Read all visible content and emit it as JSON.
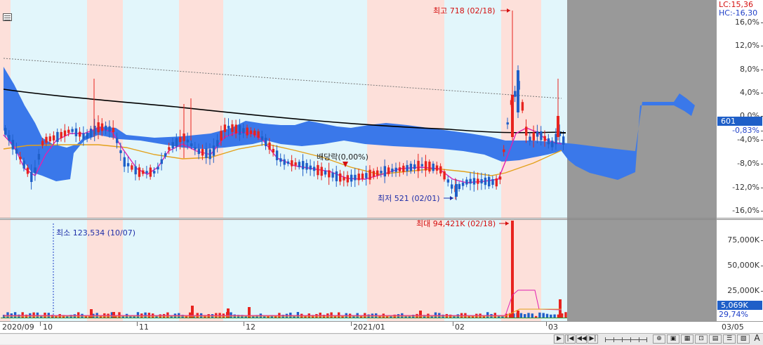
{
  "top_axis": {
    "lc_label": "LC:15,36",
    "hc_label": "HC:-16,30",
    "ticks": [
      "16,0%",
      "12,0%",
      "8,0%",
      "4,0%",
      "0,0%",
      "-4,0%",
      "-8,0%",
      "-12,0%",
      "-16,0%"
    ],
    "current_price": "601",
    "current_change": "-0,83%"
  },
  "volume_axis": {
    "ticks": [
      "75,000K",
      "50,000K",
      "25,000K"
    ],
    "current_volume": "5,069K",
    "current_ratio": "29,74%"
  },
  "x_axis": {
    "labels": [
      "2020/09",
      "10",
      "11",
      "12",
      "2021/01",
      "02",
      "03"
    ],
    "right_label": "03/05"
  },
  "annotations": {
    "high": "최고 718 (02/18)",
    "low": "최저 521 (02/01)",
    "dividend": "배당락(0,00%)",
    "vol_max": "최대 94,421K (02/18)",
    "vol_min": "최소 123,534 (10/07)"
  },
  "colors": {
    "up": "#e8231e",
    "down": "#1f5fc8",
    "cloud": "#3a78ea",
    "ma_long": "#000000",
    "ma_short": "#e020b0",
    "ma_mid": "#e3a11a",
    "band_red": "#fde0da",
    "band_blue": "#e2f6fb",
    "future_gray": "#999999"
  },
  "icons": [
    "grid-icon",
    "first-page-icon",
    "prev-page-icon",
    "next-page-icon",
    "last-page-icon",
    "zoom-slider-icon",
    "zoom-in-icon",
    "zoom-out-icon",
    "text-icon"
  ]
}
